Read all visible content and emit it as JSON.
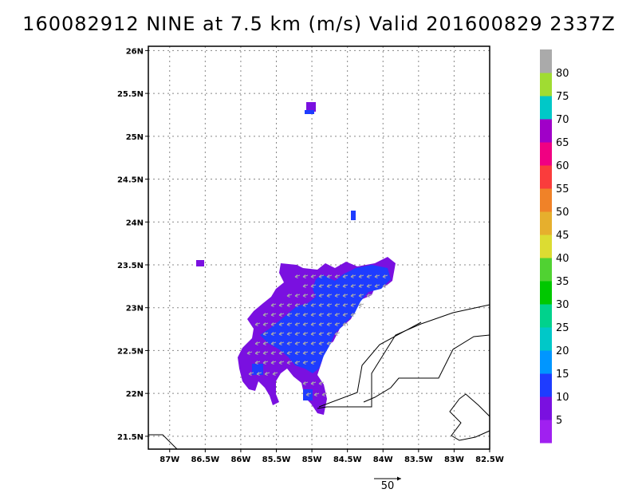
{
  "title": "160082912 NINE at 7.5 km (m/s) Valid 201600829 2337Z",
  "map": {
    "lon_range": [
      -87.3,
      -82.5
    ],
    "lat_range": [
      21.35,
      26.05
    ],
    "x_ticks": [
      {
        "lon": -87.0,
        "label": "87W"
      },
      {
        "lon": -86.5,
        "label": "86.5W"
      },
      {
        "lon": -86.0,
        "label": "86W"
      },
      {
        "lon": -85.5,
        "label": "85.5W"
      },
      {
        "lon": -85.0,
        "label": "85W"
      },
      {
        "lon": -84.5,
        "label": "84.5W"
      },
      {
        "lon": -84.0,
        "label": "84W"
      },
      {
        "lon": -83.5,
        "label": "83.5W"
      },
      {
        "lon": -83.0,
        "label": "83W"
      },
      {
        "lon": -82.5,
        "label": "82.5W"
      }
    ],
    "y_ticks": [
      {
        "lat": 26.0,
        "label": "26N"
      },
      {
        "lat": 25.5,
        "label": "25.5N"
      },
      {
        "lat": 25.0,
        "label": "25N"
      },
      {
        "lat": 24.5,
        "label": "24.5N"
      },
      {
        "lat": 24.0,
        "label": "24N"
      },
      {
        "lat": 23.5,
        "label": "23.5N"
      },
      {
        "lat": 23.0,
        "label": "23N"
      },
      {
        "lat": 22.5,
        "label": "22.5N"
      },
      {
        "lat": 22.0,
        "label": "22N"
      },
      {
        "lat": 21.5,
        "label": "21.5N"
      }
    ],
    "grid": true,
    "coastline_color": "#000000",
    "vector_color": "#aaaaaa"
  },
  "colorbar": {
    "colors": [
      "#a020f0",
      "#7a10e0",
      "#1e3cff",
      "#0096ff",
      "#00c8c8",
      "#00d28c",
      "#00c800",
      "#50d232",
      "#dcdc32",
      "#e6af2d",
      "#f08228",
      "#fa3c3c",
      "#f00082",
      "#a000c8",
      "#00c8c8",
      "#a0dc32",
      "#aaaaaa"
    ],
    "labels": [
      "5",
      "10",
      "15",
      "20",
      "25",
      "30",
      "35",
      "40",
      "45",
      "50",
      "55",
      "60",
      "65",
      "70",
      "75",
      "80"
    ]
  },
  "scale_vector": {
    "label": "50"
  }
}
